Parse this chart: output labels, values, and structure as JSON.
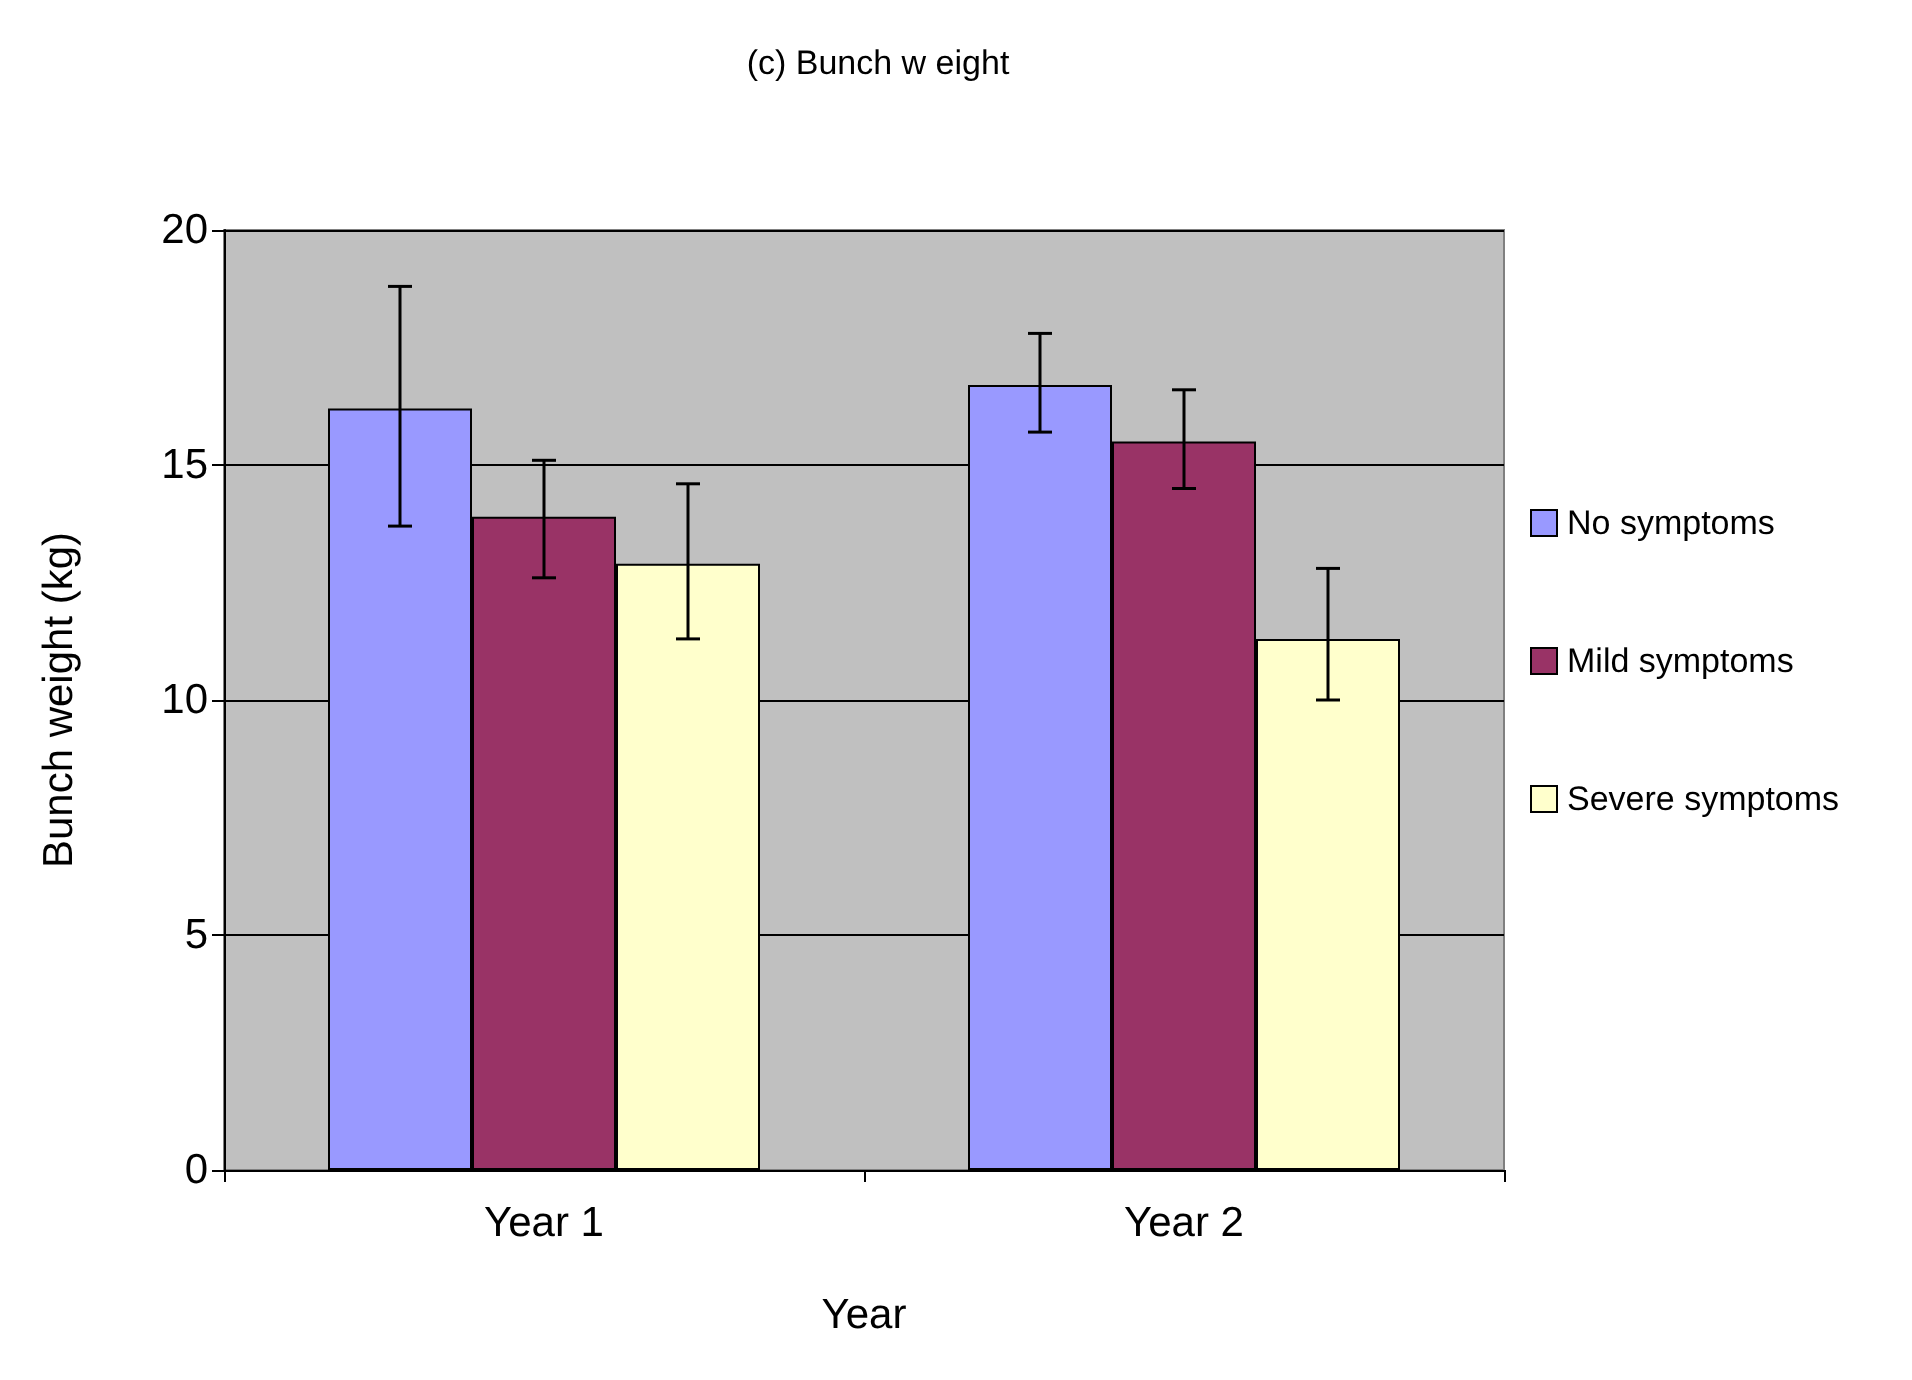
{
  "chart_data": {
    "type": "bar",
    "title": "(c) Bunch w eight",
    "xlabel": "Year",
    "ylabel": "Bunch weight (kg)",
    "categories": [
      "Year 1",
      "Year 2"
    ],
    "series": [
      {
        "name": "No symptoms",
        "color": "#9999ff",
        "values": [
          16.2,
          16.7
        ],
        "errors": [
          [
            13.7,
            18.8
          ],
          [
            15.7,
            17.8
          ]
        ]
      },
      {
        "name": "Mild symptoms",
        "color": "#993366",
        "values": [
          13.9,
          15.5
        ],
        "errors": [
          [
            12.6,
            15.1
          ],
          [
            14.5,
            16.6
          ]
        ]
      },
      {
        "name": "Severe symptoms",
        "color": "#ffffcc",
        "values": [
          12.9,
          11.3
        ],
        "errors": [
          [
            11.3,
            14.6
          ],
          [
            10.0,
            12.8
          ]
        ]
      }
    ],
    "ylim": [
      0,
      20
    ],
    "yticks": [
      0,
      5,
      10,
      15,
      20
    ],
    "grid": "y",
    "legend": "right"
  }
}
